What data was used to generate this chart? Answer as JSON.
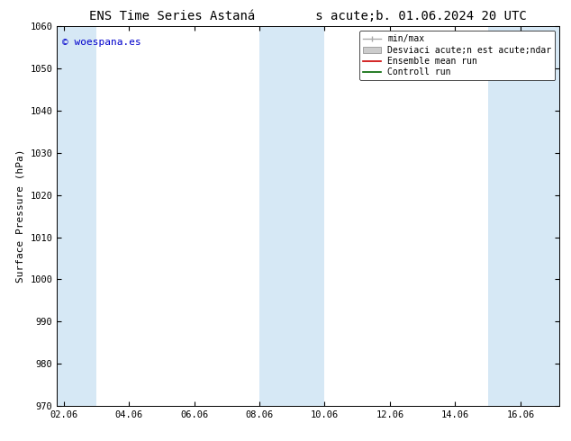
{
  "title": "ENS Time Series Astaná        s acute;b. 01.06.2024 20 UTC",
  "ylabel": "Surface Pressure (hPa)",
  "ylim": [
    970,
    1060
  ],
  "yticks": [
    970,
    980,
    990,
    1000,
    1010,
    1020,
    1030,
    1040,
    1050,
    1060
  ],
  "x_labels": [
    "02.06",
    "04.06",
    "06.06",
    "08.06",
    "10.06",
    "12.06",
    "14.06",
    "16.06"
  ],
  "x_tick_positions": [
    0,
    2,
    4,
    6,
    8,
    10,
    12,
    14
  ],
  "xlim": [
    -0.2,
    15.2
  ],
  "shaded_bands": [
    {
      "x_start": -0.2,
      "x_end": 1.0
    },
    {
      "x_start": 6.0,
      "x_end": 8.0
    },
    {
      "x_start": 13.0,
      "x_end": 15.2
    }
  ],
  "band_color": "#d6e8f5",
  "background_color": "#ffffff",
  "watermark_text": "© woespana.es",
  "watermark_color": "#0000cc",
  "legend_entries": [
    {
      "label": "min/max",
      "color": "#aaaaaa",
      "style": "errbar"
    },
    {
      "label": "Desviaci acute;n est acute;ndar",
      "color": "#cccccc",
      "style": "fillbar"
    },
    {
      "label": "Ensemble mean run",
      "color": "#cc0000",
      "style": "line"
    },
    {
      "label": "Controll run",
      "color": "#006600",
      "style": "line"
    }
  ],
  "title_fontsize": 10,
  "label_fontsize": 8,
  "tick_fontsize": 7.5,
  "legend_fontsize": 7,
  "watermark_fontsize": 8
}
